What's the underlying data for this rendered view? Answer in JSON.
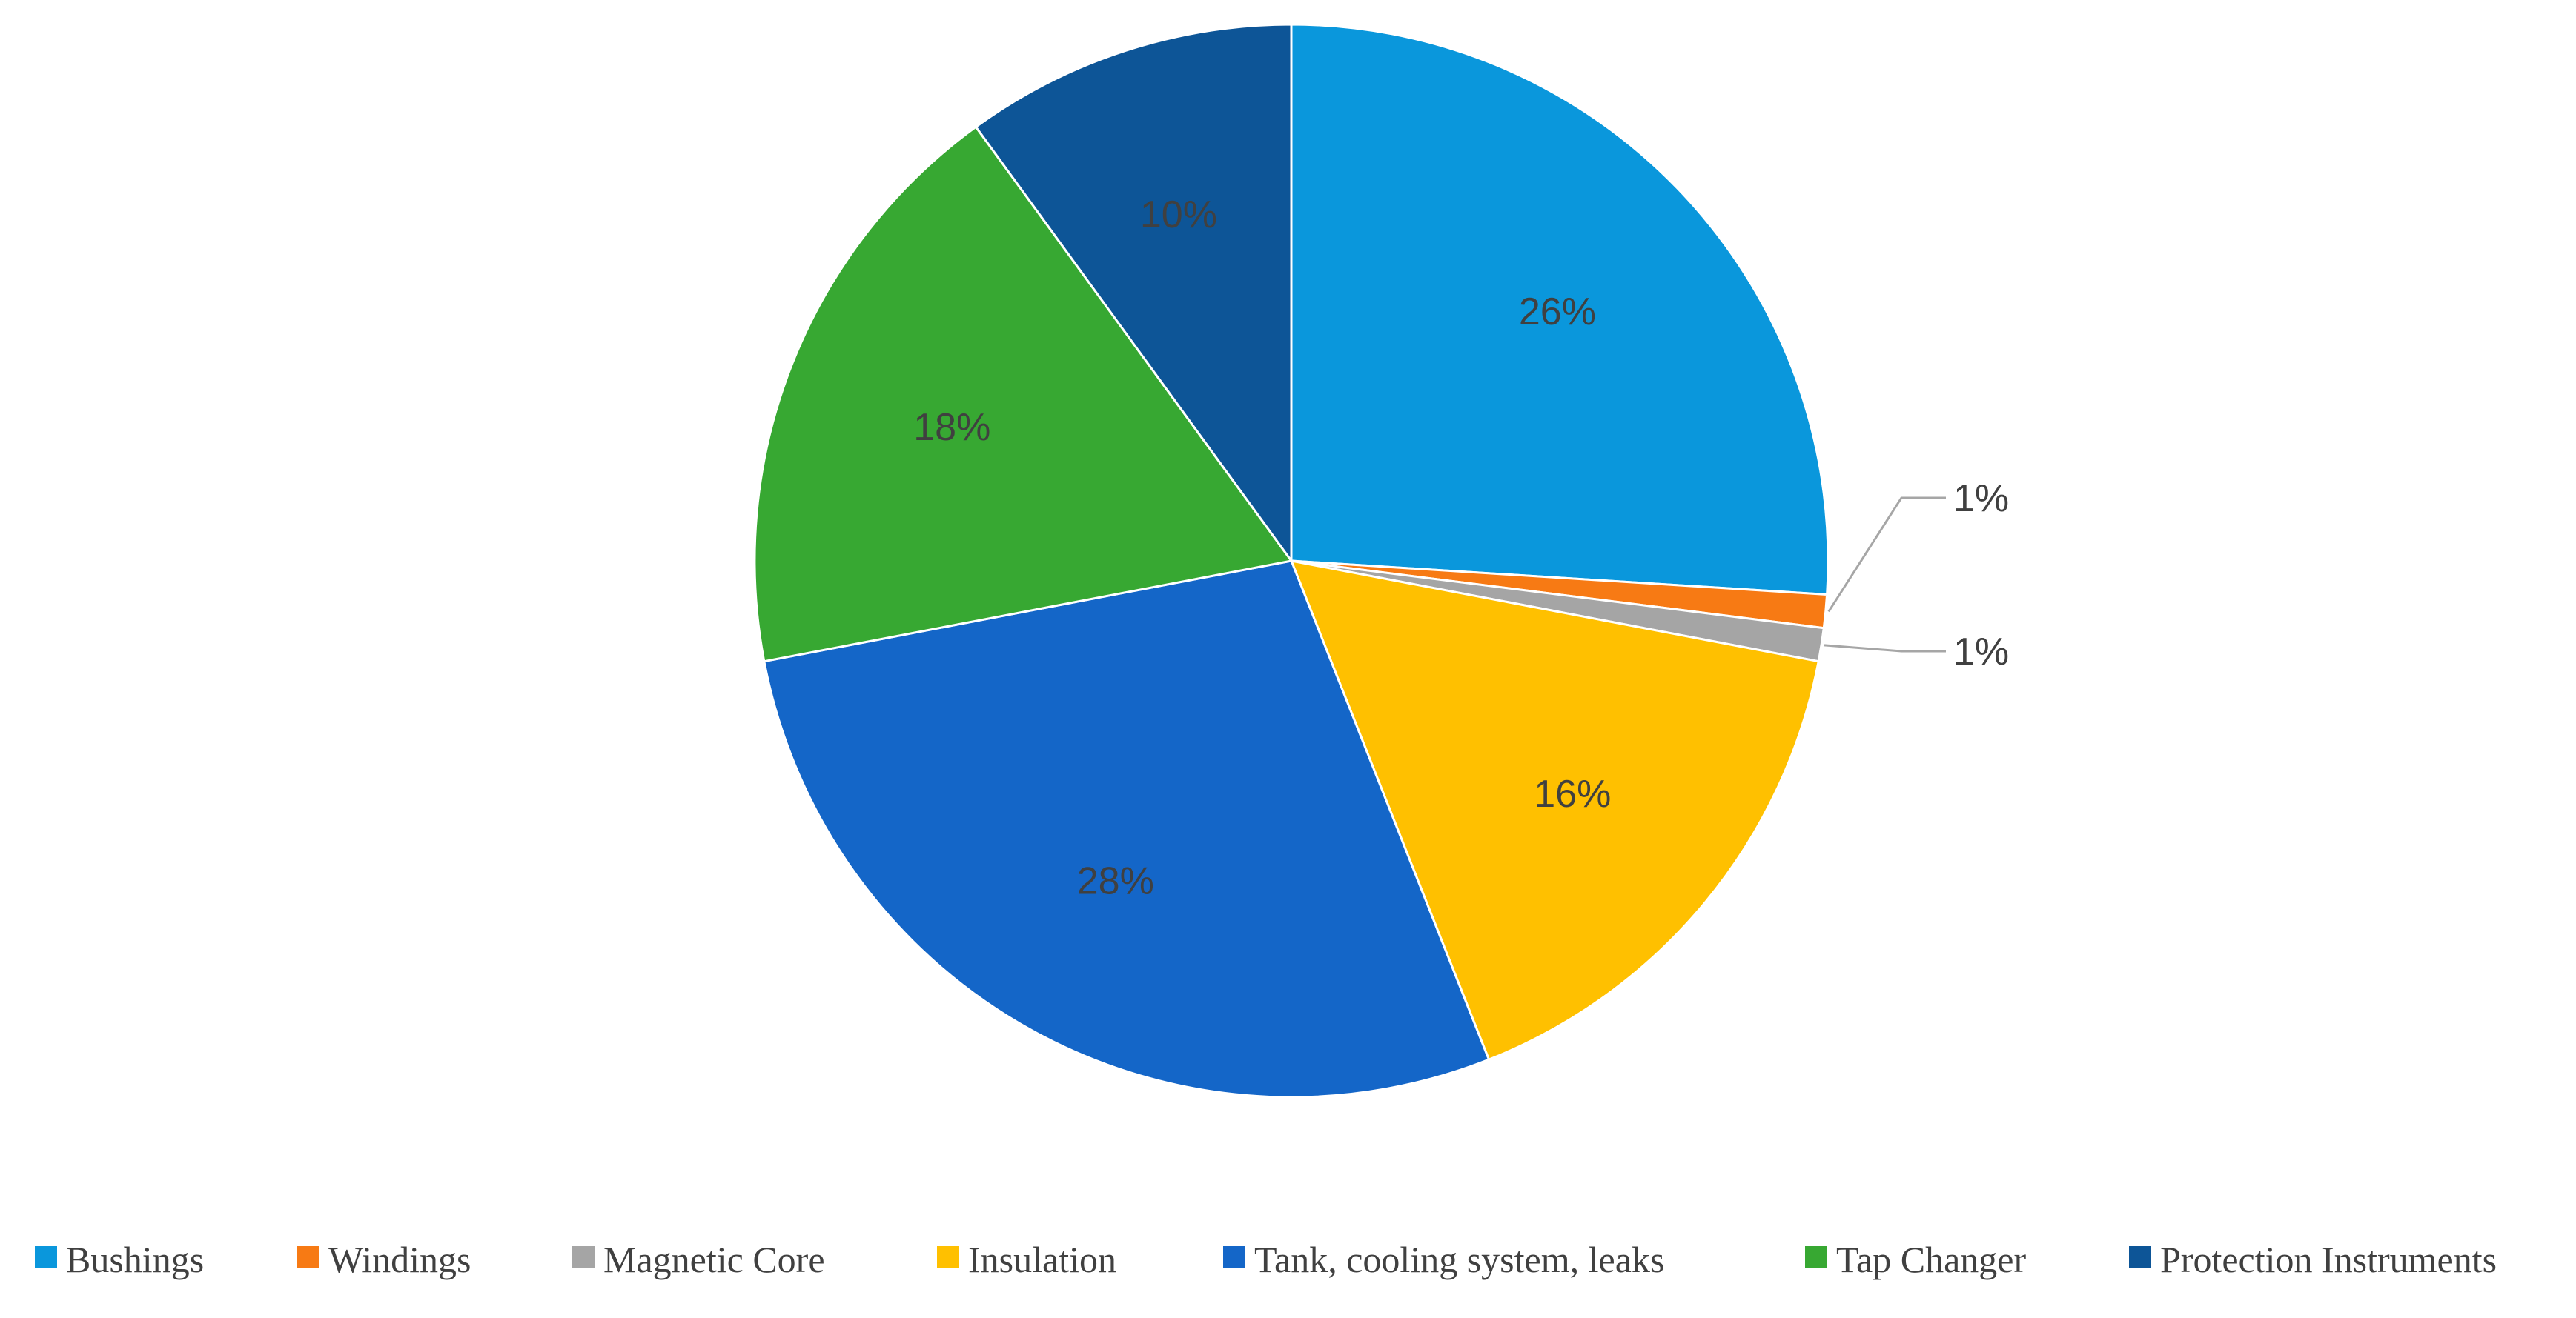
{
  "chart_data": {
    "type": "pie",
    "title": "",
    "categories": [
      "Bushings",
      "Windings",
      "Magnetic Core",
      "Insulation",
      "Tank, cooling system, leaks",
      "Tap Changer",
      "Protection Instruments"
    ],
    "values": [
      26,
      1,
      1,
      16,
      28,
      18,
      10
    ],
    "data_labels": [
      "26%",
      "1%",
      "1%",
      "16%",
      "28%",
      "18%",
      "10%"
    ],
    "colors": [
      "#0a97dc",
      "#f77a14",
      "#a5a5a5",
      "#ffc000",
      "#1466c8",
      "#37a832",
      "#0d5597"
    ],
    "start_angle_deg": 0,
    "direction": "clockwise",
    "legend_position": "bottom",
    "grid": false
  }
}
